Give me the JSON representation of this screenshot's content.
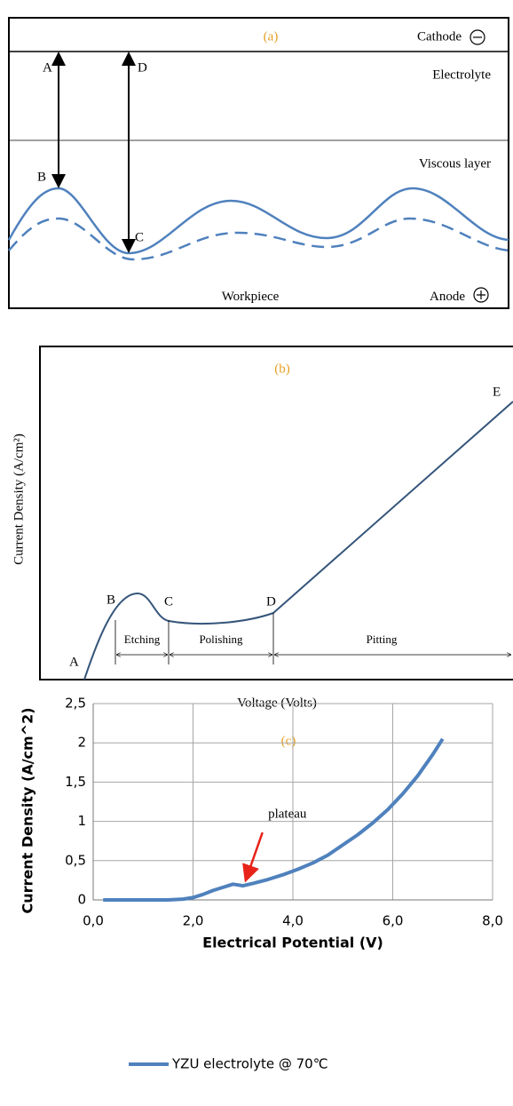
{
  "panel_a": {
    "label": "(a)",
    "cathode": "Cathode",
    "electrolyte": "Electrolyte",
    "viscous_layer": "Viscous layer",
    "workpiece": "Workpiece",
    "anode": "Anode",
    "points": [
      "A",
      "B",
      "C",
      "D"
    ]
  },
  "panel_b": {
    "label": "(b)",
    "points": [
      "A",
      "B",
      "C",
      "D",
      "E"
    ],
    "regions": [
      "Etching",
      "Polishing",
      "Pitting"
    ],
    "y_label": "Current Density (A/cm²)",
    "x_label": "Voltage (Volts)"
  },
  "chart_data": {
    "type": "line",
    "label": "(c)",
    "x_label": "Electrical Potential (V)",
    "y_label": "Current Density (A/cm^2)",
    "x": [
      0.2,
      0.5,
      1.0,
      1.5,
      1.8,
      2.0,
      2.2,
      2.4,
      2.6,
      2.8,
      2.9,
      3.0,
      3.2,
      3.5,
      3.8,
      4.1,
      4.4,
      4.7,
      5.0,
      5.3,
      5.6,
      5.9,
      6.2,
      6.5,
      6.8,
      7.0
    ],
    "series": [
      {
        "name": "YZU electrolyte @ 70℃",
        "color": "#4f81bd",
        "values": [
          0,
          0,
          0,
          0,
          0.01,
          0.03,
          0.07,
          0.12,
          0.16,
          0.2,
          0.19,
          0.18,
          0.21,
          0.26,
          0.32,
          0.39,
          0.47,
          0.57,
          0.7,
          0.83,
          0.98,
          1.15,
          1.35,
          1.58,
          1.85,
          2.05
        ]
      }
    ],
    "xlim": [
      0,
      8
    ],
    "ylim": [
      0,
      2.5
    ],
    "xticks": [
      {
        "value": 0,
        "label": "0,0"
      },
      {
        "value": 2,
        "label": "2,0"
      },
      {
        "value": 4,
        "label": "4,0"
      },
      {
        "value": 6,
        "label": "6,0"
      },
      {
        "value": 8,
        "label": "8,0"
      }
    ],
    "yticks": [
      0,
      {
        "value": 0.5,
        "label": "0,5"
      },
      1,
      {
        "value": 1.5,
        "label": "1,5"
      },
      2,
      {
        "value": 2.5,
        "label": "2,5"
      }
    ],
    "grid": true,
    "legend": "bottom",
    "annotations": [
      {
        "text": "plateau",
        "x": 3.0,
        "y": 0.18,
        "color": "#e8231a"
      }
    ]
  }
}
